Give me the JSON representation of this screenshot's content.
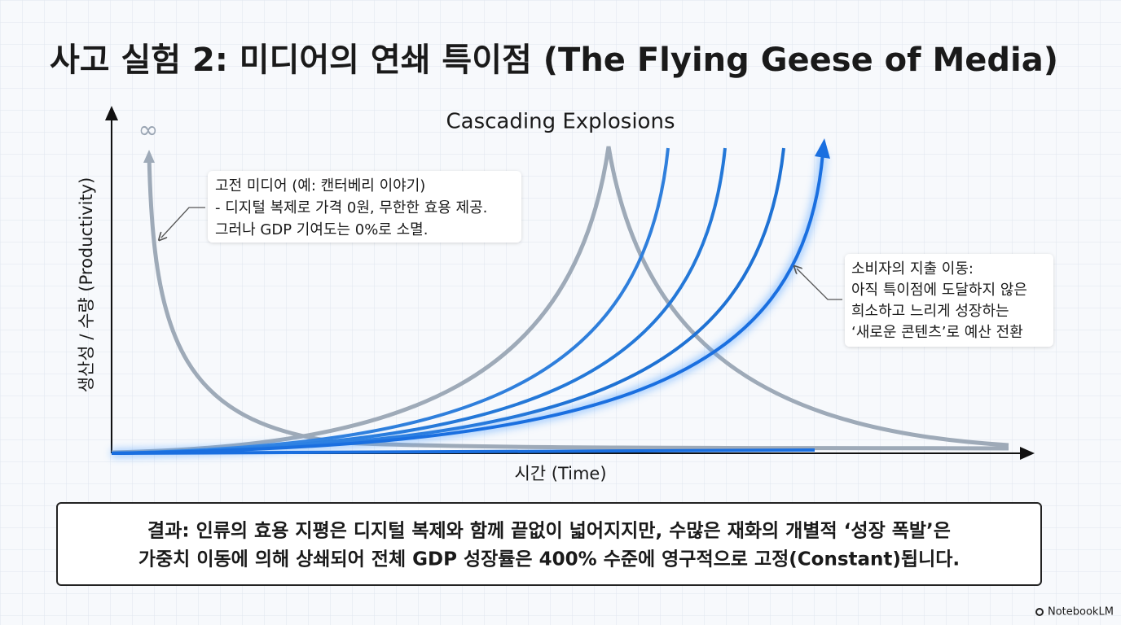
{
  "header": {
    "title": "사고 실험 2: 미디어의 연쇄 특이점 (The Flying Geese of Media)"
  },
  "diagram": {
    "subtitle": "Cascading Explosions",
    "y_axis_label": "생산성 / 수량 (Productivity)",
    "x_axis_label": "시간 (Time)",
    "infinity_mark": "∞",
    "callouts": [
      {
        "lines": [
          "고전 미디어 (예: 캔터베리 이야기)",
          "- 디지털 복제로 가격 0원, 무한한 효용 제공.",
          "그러나 GDP 기여도는 0%로 소멸."
        ]
      },
      {
        "lines": [
          "소비자의 지출 이동:",
          "아직 특이점에 도달하지 않은",
          "희소하고 느리게 성장하는",
          "‘새로운 콘텐츠’로 예산 전환"
        ]
      }
    ]
  },
  "conclusion": {
    "lines": [
      "결과: 인류의 효용 지평은 디지털 복제와 함께 끝없이 넓어지지만, 수많은 재화의 개별적 ‘성장 폭발’은",
      "가중치 이동에 의해 상쇄되어 전체 GDP 성장률은 400% 수준에 영구적으로 고정(Constant)됩니다."
    ]
  },
  "footer": {
    "brand": "NotebookLM"
  }
}
